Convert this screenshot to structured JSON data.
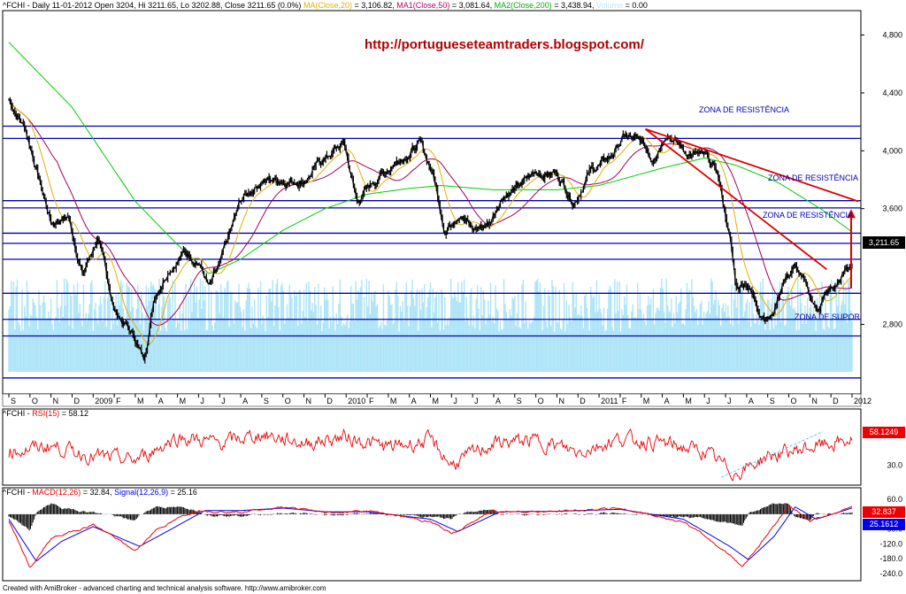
{
  "header": {
    "symbol": "^FCHI",
    "info": "^FCHI - Daily 11-01-2012 Open 3204, Hi 3211.65, Lo 3202.88, Close 3211.65 (0.0%)",
    "ma20_label": "MA(Close,20)",
    "ma20_value": "= 3,106.82,",
    "ma50_label": "MA1(Close,50)",
    "ma50_value": "= 3,081.64,",
    "ma200_label": "MA2(Close,200)",
    "ma200_value": "= 3,438.94,",
    "volume_label": "Volume",
    "volume_value": "= 0.00"
  },
  "watermark_url": "http://portugueseteamtraders.blogspot.com/",
  "annotations": [
    "ZONA DE RESISTÊNCIA",
    "ZONA DE RESISTÊNCIA",
    "ZONA DE RESISTÊNCIA",
    "ZONA DE SUPORTE"
  ],
  "last_price_tag": "3,211.65",
  "rsi": {
    "header_prefix": "^FCHI -",
    "label": "RSI(15)",
    "value": "= 58.12",
    "tag": "58.1249",
    "ticks": [
      "70.0",
      "30.0"
    ]
  },
  "macd": {
    "header_prefix": "^FCHI -",
    "label": "MACD(12,26)",
    "value": "= 32.84,",
    "signal_label": "Signal(12,26,9)",
    "signal_value": "= 25.16",
    "tag_macd": "32.837",
    "tag_signal": "25.1612",
    "ticks": [
      "60.0",
      "0.0",
      "-60.0",
      "-120.0",
      "-180.0",
      "-240.0"
    ]
  },
  "footer": "Created with AmiBroker - advanced charting and technical analysis software. http://www.amibroker.com",
  "colors": {
    "price": "#000000",
    "ma20": "#e0b000",
    "ma50": "#a0005a",
    "ma200": "#00cc00",
    "volume": "#aee4f8",
    "hline": "#0000b0",
    "trendline": "#dd0000",
    "rsi": "#ee0000",
    "macd": "#ee0000",
    "signal": "#0000ee",
    "hist": "#000000"
  },
  "chart_data": [
    {
      "type": "line",
      "title": "^FCHI Daily",
      "series_names": [
        "Close",
        "MA(Close,20)",
        "MA1(Close,50)",
        "MA2(Close,200)",
        "Volume"
      ],
      "x_labels": [
        "S",
        "O",
        "N",
        "D",
        "2009",
        "F",
        "M",
        "A",
        "M",
        "J",
        "J",
        "A",
        "S",
        "O",
        "N",
        "D",
        "2010",
        "F",
        "M",
        "A",
        "M",
        "J",
        "J",
        "A",
        "S",
        "O",
        "N",
        "D",
        "2011",
        "F",
        "M",
        "A",
        "M",
        "J",
        "J",
        "A",
        "S",
        "O",
        "N",
        "D",
        "2012"
      ],
      "y_ticks": [
        4800,
        4400,
        4000,
        3600,
        2800
      ],
      "ylim": [
        2350,
        4950
      ],
      "grid": false,
      "close_knots": [
        {
          "x": 0,
          "y": 4350
        },
        {
          "x": 0.8,
          "y": 4150
        },
        {
          "x": 2,
          "y": 3500
        },
        {
          "x": 2.8,
          "y": 3550
        },
        {
          "x": 3.5,
          "y": 3150
        },
        {
          "x": 4.2,
          "y": 3400
        },
        {
          "x": 5,
          "y": 2900
        },
        {
          "x": 6,
          "y": 2700
        },
        {
          "x": 6.4,
          "y": 2550
        },
        {
          "x": 6.9,
          "y": 3000
        },
        {
          "x": 7.6,
          "y": 3200
        },
        {
          "x": 8.3,
          "y": 3300
        },
        {
          "x": 9,
          "y": 3250
        },
        {
          "x": 9.5,
          "y": 3050
        },
        {
          "x": 10,
          "y": 3200
        },
        {
          "x": 11,
          "y": 3650
        },
        {
          "x": 12,
          "y": 3800
        },
        {
          "x": 13,
          "y": 3800
        },
        {
          "x": 14,
          "y": 3800
        },
        {
          "x": 15,
          "y": 3950
        },
        {
          "x": 15.9,
          "y": 4050
        },
        {
          "x": 16.5,
          "y": 3650
        },
        {
          "x": 17.4,
          "y": 3800
        },
        {
          "x": 18.5,
          "y": 3950
        },
        {
          "x": 19.5,
          "y": 4050
        },
        {
          "x": 20.1,
          "y": 3850
        },
        {
          "x": 20.7,
          "y": 3450
        },
        {
          "x": 21.4,
          "y": 3600
        },
        {
          "x": 22,
          "y": 3450
        },
        {
          "x": 22.8,
          "y": 3500
        },
        {
          "x": 23.4,
          "y": 3700
        },
        {
          "x": 24.2,
          "y": 3750
        },
        {
          "x": 25,
          "y": 3850
        },
        {
          "x": 26,
          "y": 3850
        },
        {
          "x": 26.8,
          "y": 3650
        },
        {
          "x": 27.5,
          "y": 3850
        },
        {
          "x": 28.5,
          "y": 3950
        },
        {
          "x": 29.2,
          "y": 4100
        },
        {
          "x": 30,
          "y": 4050
        },
        {
          "x": 30.5,
          "y": 3950
        },
        {
          "x": 31.2,
          "y": 4150
        },
        {
          "x": 32,
          "y": 4000
        },
        {
          "x": 33,
          "y": 3950
        },
        {
          "x": 33.6,
          "y": 3850
        },
        {
          "x": 34.2,
          "y": 3400
        },
        {
          "x": 34.5,
          "y": 3050
        },
        {
          "x": 35,
          "y": 3100
        },
        {
          "x": 35.6,
          "y": 2900
        },
        {
          "x": 36.2,
          "y": 2850
        },
        {
          "x": 36.7,
          "y": 3100
        },
        {
          "x": 37.3,
          "y": 3200
        },
        {
          "x": 37.8,
          "y": 3050
        },
        {
          "x": 38.3,
          "y": 2900
        },
        {
          "x": 38.7,
          "y": 3000
        },
        {
          "x": 39.2,
          "y": 3050
        },
        {
          "x": 39.6,
          "y": 3150
        },
        {
          "x": 40,
          "y": 3211.65
        }
      ],
      "ma200_knots": [
        {
          "x": 0,
          "y": 4750
        },
        {
          "x": 3,
          "y": 4300
        },
        {
          "x": 6,
          "y": 3650
        },
        {
          "x": 8,
          "y": 3350
        },
        {
          "x": 9.5,
          "y": 3150
        },
        {
          "x": 11,
          "y": 3250
        },
        {
          "x": 13,
          "y": 3450
        },
        {
          "x": 15,
          "y": 3600
        },
        {
          "x": 17,
          "y": 3700
        },
        {
          "x": 19,
          "y": 3740
        },
        {
          "x": 20.5,
          "y": 3760
        },
        {
          "x": 23,
          "y": 3730
        },
        {
          "x": 26,
          "y": 3730
        },
        {
          "x": 28,
          "y": 3760
        },
        {
          "x": 31,
          "y": 3880
        },
        {
          "x": 33,
          "y": 3950
        },
        {
          "x": 34.5,
          "y": 3900
        },
        {
          "x": 36.5,
          "y": 3780
        },
        {
          "x": 38.5,
          "y": 3600
        },
        {
          "x": 40,
          "y": 3438.94
        }
      ],
      "horizontal_levels": [
        4170,
        4085,
        3655,
        3605,
        3430,
        3360,
        3250,
        3015,
        2835,
        2720,
        2430
      ],
      "resistance_trendlines": [
        {
          "x1": 30.2,
          "y1": 4150,
          "x2": 40.3,
          "y2": 3650
        },
        {
          "x1": 30.2,
          "y1": 4150,
          "x2": 38.8,
          "y2": 3180
        }
      ],
      "volume_level_percent": 62
    },
    {
      "type": "line",
      "title": "RSI(15)",
      "ylim": [
        10,
        90
      ],
      "y_ticks": [
        70,
        30
      ],
      "last_value": 58.1249,
      "knots": [
        {
          "x": 0,
          "y": 45
        },
        {
          "x": 2,
          "y": 52
        },
        {
          "x": 4,
          "y": 40
        },
        {
          "x": 6,
          "y": 35
        },
        {
          "x": 8,
          "y": 62
        },
        {
          "x": 10,
          "y": 55
        },
        {
          "x": 12,
          "y": 65
        },
        {
          "x": 14,
          "y": 55
        },
        {
          "x": 16,
          "y": 62
        },
        {
          "x": 18,
          "y": 50
        },
        {
          "x": 20,
          "y": 58
        },
        {
          "x": 21,
          "y": 30
        },
        {
          "x": 23,
          "y": 55
        },
        {
          "x": 25,
          "y": 58
        },
        {
          "x": 27,
          "y": 45
        },
        {
          "x": 29,
          "y": 60
        },
        {
          "x": 31,
          "y": 55
        },
        {
          "x": 33,
          "y": 45
        },
        {
          "x": 34.5,
          "y": 20
        },
        {
          "x": 36,
          "y": 40
        },
        {
          "x": 38,
          "y": 50
        },
        {
          "x": 40,
          "y": 58.12
        }
      ]
    },
    {
      "type": "line",
      "title": "MACD(12,26) / Signal(12,26,9)",
      "ylim": [
        -255,
        75
      ],
      "y_ticks": [
        60,
        0,
        -60,
        -120,
        -180,
        -240
      ],
      "last_macd": 32.84,
      "last_signal": 25.16,
      "macd_knots": [
        {
          "x": 0,
          "y": -30
        },
        {
          "x": 1,
          "y": -220
        },
        {
          "x": 2,
          "y": -100
        },
        {
          "x": 4,
          "y": -40
        },
        {
          "x": 6,
          "y": -150
        },
        {
          "x": 7,
          "y": -60
        },
        {
          "x": 9,
          "y": 20
        },
        {
          "x": 11,
          "y": 10
        },
        {
          "x": 13,
          "y": 30
        },
        {
          "x": 15,
          "y": 5
        },
        {
          "x": 17,
          "y": 15
        },
        {
          "x": 20,
          "y": -30
        },
        {
          "x": 21,
          "y": -80
        },
        {
          "x": 23,
          "y": 15
        },
        {
          "x": 26,
          "y": 10
        },
        {
          "x": 29,
          "y": 25
        },
        {
          "x": 32,
          "y": -30
        },
        {
          "x": 34,
          "y": -150
        },
        {
          "x": 34.8,
          "y": -210
        },
        {
          "x": 36,
          "y": -80
        },
        {
          "x": 37,
          "y": 40
        },
        {
          "x": 38,
          "y": -30
        },
        {
          "x": 40,
          "y": 32.84
        }
      ],
      "signal_knots": [
        {
          "x": 0,
          "y": -20
        },
        {
          "x": 1.3,
          "y": -190
        },
        {
          "x": 2.5,
          "y": -110
        },
        {
          "x": 4,
          "y": -50
        },
        {
          "x": 6.2,
          "y": -130
        },
        {
          "x": 7.5,
          "y": -70
        },
        {
          "x": 9.3,
          "y": 15
        },
        {
          "x": 11,
          "y": 15
        },
        {
          "x": 13,
          "y": 25
        },
        {
          "x": 15,
          "y": 10
        },
        {
          "x": 17,
          "y": 10
        },
        {
          "x": 20,
          "y": -20
        },
        {
          "x": 21.3,
          "y": -70
        },
        {
          "x": 23.3,
          "y": 10
        },
        {
          "x": 26,
          "y": 12
        },
        {
          "x": 29,
          "y": 20
        },
        {
          "x": 32,
          "y": -20
        },
        {
          "x": 34.2,
          "y": -130
        },
        {
          "x": 35.1,
          "y": -185
        },
        {
          "x": 36.3,
          "y": -90
        },
        {
          "x": 37.3,
          "y": 30
        },
        {
          "x": 38.3,
          "y": -20
        },
        {
          "x": 40,
          "y": 25.16
        }
      ]
    }
  ]
}
